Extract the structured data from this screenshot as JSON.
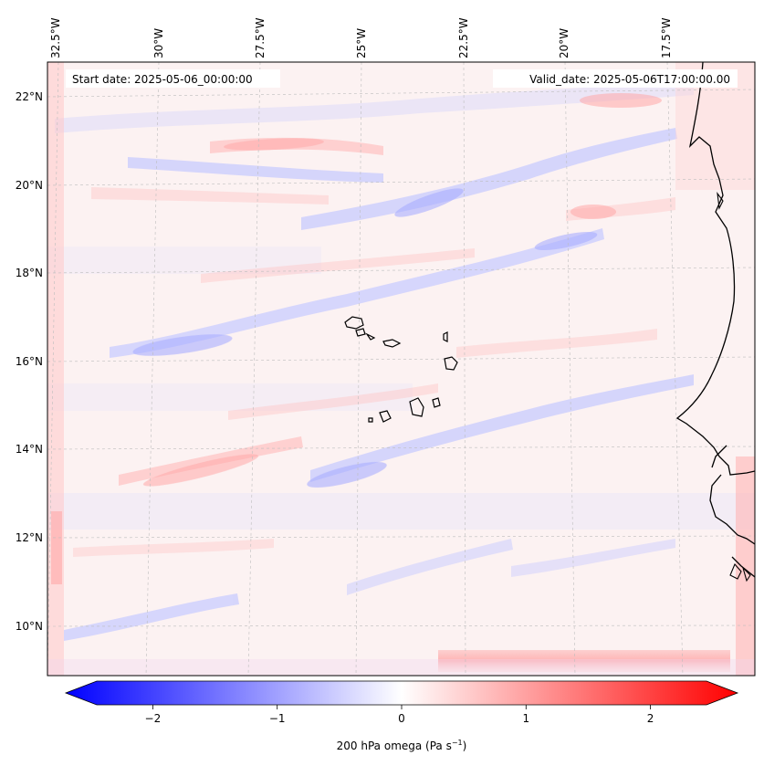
{
  "map": {
    "start_date": "Start date: 2025-05-06_00:00:00",
    "valid_date": "Valid_date: 2025-05-06T17:00:00.00",
    "lon_labels": [
      "32.5°W",
      "30°W",
      "27.5°W",
      "25°W",
      "22.5°W",
      "20°W",
      "17.5°W"
    ],
    "lat_labels": [
      "22°N",
      "20°N",
      "18°N",
      "16°N",
      "14°N",
      "12°N",
      "10°N"
    ]
  },
  "colorbar": {
    "label": "200 hPa omega (Pa s",
    "label_sup": "−1",
    "label_end": ")",
    "ticks": [
      "−2",
      "−1",
      "0",
      "1",
      "2"
    ],
    "min": -2.7,
    "max": 2.7,
    "colors": {
      "negative": "#0000ff",
      "zero": "#ffffff",
      "positive": "#ff0000"
    }
  }
}
